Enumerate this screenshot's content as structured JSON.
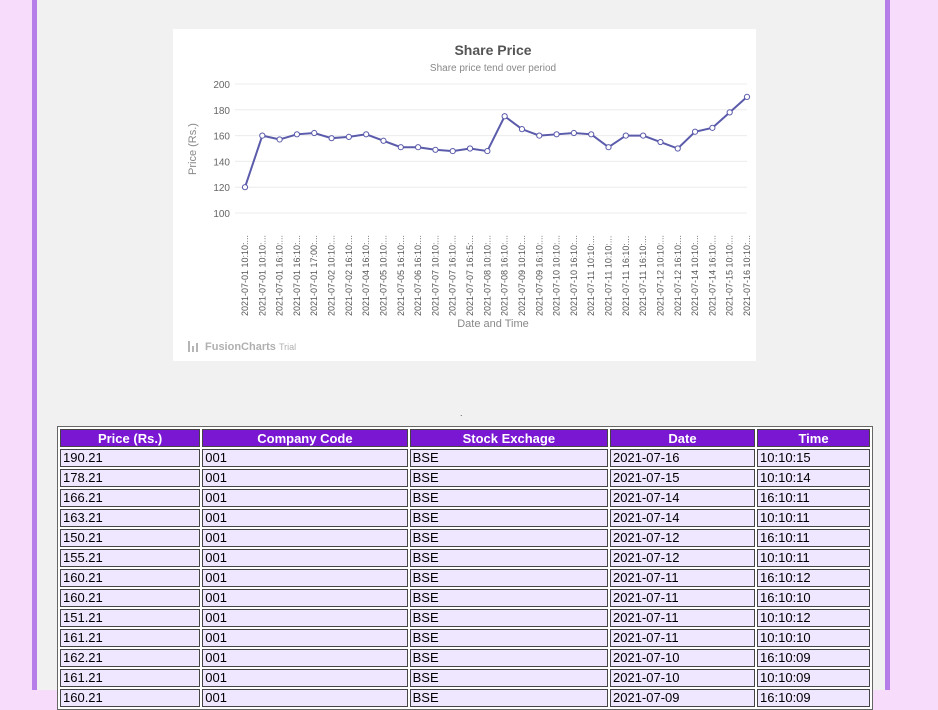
{
  "chart_data": {
    "type": "line",
    "title": "Share Price",
    "subtitle": "Share price tend over period",
    "xlabel": "Date and Time",
    "ylabel": "Price (Rs.)",
    "ylim": [
      100,
      200
    ],
    "yticks": [
      100,
      120,
      140,
      160,
      180,
      200
    ],
    "grid": true,
    "categories": [
      "2021-07-01 10:10:...",
      "2021-07-01 10:10:...",
      "2021-07-01 16:10:...",
      "2021-07-01 16:10:...",
      "2021-07-01 17:00:...",
      "2021-07-02 10:10:...",
      "2021-07-02 16:10:...",
      "2021-07-04 16:10:...",
      "2021-07-05 10:10:...",
      "2021-07-05 16:10:...",
      "2021-07-06 16:10:...",
      "2021-07-07 10:10:...",
      "2021-07-07 16:10:...",
      "2021-07-07 16:15:...",
      "2021-07-08 10:10:...",
      "2021-07-08 16:10:...",
      "2021-07-09 10:10:...",
      "2021-07-09 16:10:...",
      "2021-07-10 10:10:...",
      "2021-07-10 16:10:...",
      "2021-07-11 10:10:...",
      "2021-07-11 10:10:...",
      "2021-07-11 16:10:...",
      "2021-07-11 16:10:...",
      "2021-07-12 10:10:...",
      "2021-07-12 16:10:...",
      "2021-07-14 10:10:...",
      "2021-07-14 16:10:...",
      "2021-07-15 10:10:...",
      "2021-07-16 10:10:..."
    ],
    "values": [
      120,
      160,
      157,
      161,
      162,
      158,
      159,
      161,
      156,
      151,
      151,
      149,
      148,
      150,
      148,
      175,
      165,
      160,
      161,
      162,
      161,
      151,
      160,
      160,
      155,
      150,
      163,
      166,
      178,
      190
    ],
    "line_color": "#5b5bab",
    "watermark": "FusionCharts",
    "watermark_suffix": "Trial"
  },
  "separator": ".",
  "table": {
    "headers": [
      "Price (Rs.)",
      "Company Code",
      "Stock Exchage",
      "Date",
      "Time"
    ],
    "rows": [
      [
        "190.21",
        "001",
        "BSE",
        "2021-07-16",
        "10:10:15"
      ],
      [
        "178.21",
        "001",
        "BSE",
        "2021-07-15",
        "10:10:14"
      ],
      [
        "166.21",
        "001",
        "BSE",
        "2021-07-14",
        "16:10:11"
      ],
      [
        "163.21",
        "001",
        "BSE",
        "2021-07-14",
        "10:10:11"
      ],
      [
        "150.21",
        "001",
        "BSE",
        "2021-07-12",
        "16:10:11"
      ],
      [
        "155.21",
        "001",
        "BSE",
        "2021-07-12",
        "10:10:11"
      ],
      [
        "160.21",
        "001",
        "BSE",
        "2021-07-11",
        "16:10:12"
      ],
      [
        "160.21",
        "001",
        "BSE",
        "2021-07-11",
        "16:10:10"
      ],
      [
        "151.21",
        "001",
        "BSE",
        "2021-07-11",
        "10:10:12"
      ],
      [
        "161.21",
        "001",
        "BSE",
        "2021-07-11",
        "10:10:10"
      ],
      [
        "162.21",
        "001",
        "BSE",
        "2021-07-10",
        "16:10:09"
      ],
      [
        "161.21",
        "001",
        "BSE",
        "2021-07-10",
        "10:10:09"
      ],
      [
        "160.21",
        "001",
        "BSE",
        "2021-07-09",
        "16:10:09"
      ]
    ]
  },
  "colors": {
    "page_bg": "#f8dcfb",
    "frame_border": "#b57ee8",
    "header_bg": "#7a17d2",
    "cell_bg": "#efe6ff"
  }
}
